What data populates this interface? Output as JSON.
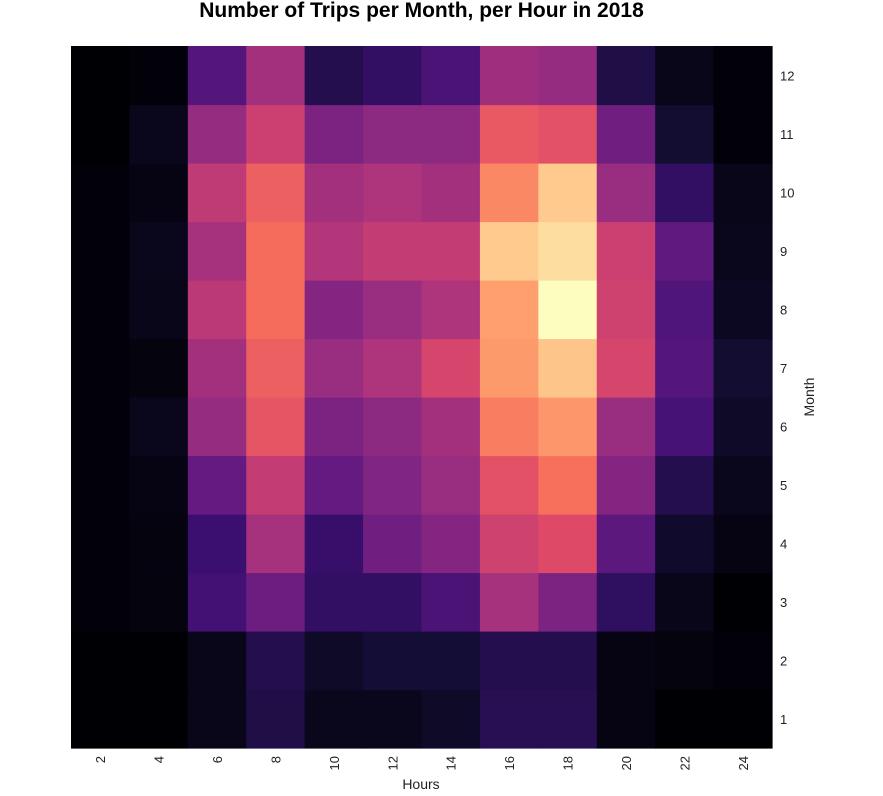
{
  "chart_data": {
    "type": "heatmap",
    "title": "Number of Trips per Month, per Hour in 2018",
    "xlabel": "Hours",
    "ylabel": "Month",
    "x": [
      1,
      2,
      3,
      4,
      5,
      6,
      7,
      8,
      9,
      10,
      11,
      12
    ],
    "x_tick_labels": [
      "2",
      "4",
      "6",
      "8",
      "10",
      "12",
      "14",
      "16",
      "18",
      "20",
      "22",
      "24"
    ],
    "y": [
      1,
      2,
      3,
      4,
      5,
      6,
      7,
      8,
      9,
      10,
      11,
      12
    ],
    "y_tick_labels": [
      "1",
      "2",
      "3",
      "4",
      "5",
      "6",
      "7",
      "8",
      "9",
      "10",
      "11",
      "12"
    ],
    "colormap": "magma",
    "intensity_scale": "relative 0-1 (no colorbar shown)",
    "legend": "none",
    "grid": false,
    "values": [
      [
        0.0,
        0.0,
        0.04,
        0.13,
        0.05,
        0.05,
        0.07,
        0.15,
        0.15,
        0.03,
        0.0,
        0.0
      ],
      [
        0.0,
        0.0,
        0.04,
        0.14,
        0.07,
        0.1,
        0.1,
        0.14,
        0.14,
        0.03,
        0.02,
        0.01
      ],
      [
        0.01,
        0.02,
        0.22,
        0.32,
        0.18,
        0.18,
        0.24,
        0.46,
        0.36,
        0.17,
        0.04,
        0.0
      ],
      [
        0.01,
        0.02,
        0.2,
        0.46,
        0.19,
        0.33,
        0.38,
        0.56,
        0.6,
        0.28,
        0.08,
        0.03
      ],
      [
        0.01,
        0.03,
        0.3,
        0.53,
        0.3,
        0.37,
        0.43,
        0.62,
        0.7,
        0.38,
        0.14,
        0.05
      ],
      [
        0.01,
        0.05,
        0.42,
        0.63,
        0.36,
        0.4,
        0.45,
        0.73,
        0.78,
        0.43,
        0.23,
        0.07
      ],
      [
        0.01,
        0.02,
        0.45,
        0.66,
        0.43,
        0.48,
        0.58,
        0.79,
        0.88,
        0.58,
        0.26,
        0.09
      ],
      [
        0.01,
        0.04,
        0.51,
        0.69,
        0.38,
        0.43,
        0.48,
        0.8,
        1.0,
        0.56,
        0.25,
        0.06
      ],
      [
        0.01,
        0.05,
        0.46,
        0.69,
        0.49,
        0.53,
        0.53,
        0.89,
        0.93,
        0.55,
        0.29,
        0.05
      ],
      [
        0.01,
        0.03,
        0.52,
        0.66,
        0.45,
        0.48,
        0.45,
        0.75,
        0.89,
        0.43,
        0.18,
        0.04
      ],
      [
        0.0,
        0.05,
        0.42,
        0.55,
        0.36,
        0.4,
        0.4,
        0.64,
        0.62,
        0.33,
        0.09,
        0.01
      ],
      [
        0.0,
        0.01,
        0.26,
        0.45,
        0.14,
        0.18,
        0.24,
        0.44,
        0.42,
        0.13,
        0.04,
        0.01
      ]
    ]
  }
}
